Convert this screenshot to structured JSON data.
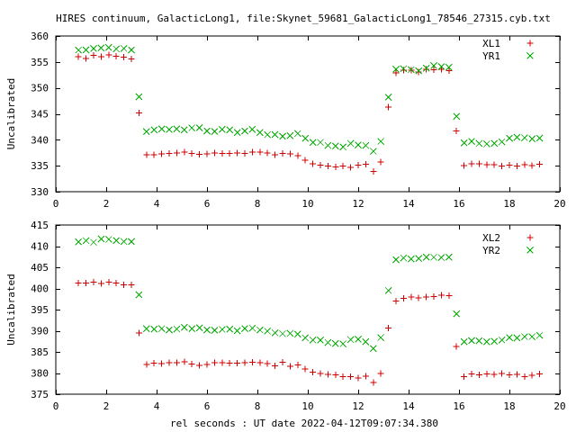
{
  "figure": {
    "title": "HIRES continuum, GalacticLong1, file:Skynet_59681_GalacticLong1_78546_27315.cyb.txt",
    "xlabel": "rel seconds : UT date 2022-04-12T09:07:34.380"
  },
  "chart_data": [
    {
      "type": "scatter",
      "title": "HIRES continuum, GalacticLong1, file:Skynet_59681_GalacticLong1_78546_27315.cyb.txt",
      "xlabel": "",
      "ylabel": "Uncalibrated",
      "xlim": [
        0,
        20
      ],
      "ylim": [
        330,
        360
      ],
      "xticks": [
        0,
        2,
        4,
        6,
        8,
        10,
        12,
        14,
        16,
        18,
        20
      ],
      "yticks": [
        330,
        335,
        340,
        345,
        350,
        355,
        360
      ],
      "grid": false,
      "legend": "top-right",
      "x": [
        0.9,
        1.2,
        1.5,
        1.8,
        2.1,
        2.4,
        2.7,
        3.0,
        3.3,
        3.6,
        3.9,
        4.2,
        4.5,
        4.8,
        5.1,
        5.4,
        5.7,
        6.0,
        6.3,
        6.6,
        6.9,
        7.2,
        7.5,
        7.8,
        8.1,
        8.4,
        8.7,
        9.0,
        9.3,
        9.6,
        9.9,
        10.2,
        10.5,
        10.8,
        11.1,
        11.4,
        11.7,
        12.0,
        12.3,
        12.6,
        12.9,
        13.2,
        13.5,
        13.8,
        14.1,
        14.4,
        14.7,
        15.0,
        15.3,
        15.6,
        15.9,
        16.2,
        16.5,
        16.8,
        17.1,
        17.4,
        17.7,
        18.0,
        18.3,
        18.6,
        18.9,
        19.2
      ],
      "series": [
        {
          "name": "XL1",
          "color": "#cc0000",
          "marker": "plus",
          "values": [
            356.0,
            355.7,
            356.3,
            356.0,
            356.4,
            356.1,
            355.9,
            355.6,
            345.2,
            337.1,
            337.1,
            337.3,
            337.4,
            337.5,
            337.6,
            337.4,
            337.2,
            337.3,
            337.5,
            337.4,
            337.4,
            337.5,
            337.4,
            337.6,
            337.6,
            337.5,
            337.1,
            337.4,
            337.3,
            336.9,
            336.1,
            335.4,
            335.1,
            334.9,
            334.8,
            334.9,
            334.7,
            335.1,
            335.3,
            333.9,
            335.7,
            346.3,
            352.9,
            353.4,
            353.4,
            353.1,
            353.6,
            353.5,
            353.6,
            353.3,
            341.7,
            335.0,
            335.4,
            335.4,
            335.2,
            335.2,
            334.9,
            335.1,
            334.9,
            335.2,
            335.0,
            335.3
          ]
        },
        {
          "name": "YR1",
          "color": "#00aa00",
          "marker": "cross",
          "values": [
            357.3,
            357.3,
            357.6,
            357.7,
            357.8,
            357.5,
            357.6,
            357.3,
            348.3,
            341.6,
            341.9,
            342.1,
            342.0,
            342.1,
            341.9,
            342.3,
            342.3,
            341.7,
            341.6,
            342.0,
            341.9,
            341.4,
            341.7,
            342.0,
            341.4,
            341.0,
            341.0,
            340.7,
            340.8,
            341.2,
            340.3,
            339.5,
            339.5,
            338.9,
            338.8,
            338.6,
            339.3,
            339.0,
            338.9,
            337.8,
            339.7,
            348.2,
            353.6,
            353.7,
            353.5,
            353.3,
            353.8,
            354.3,
            354.1,
            354.0,
            344.5,
            339.4,
            339.7,
            339.3,
            339.2,
            339.3,
            339.6,
            340.3,
            340.5,
            340.4,
            340.2,
            340.3
          ]
        }
      ]
    },
    {
      "type": "scatter",
      "title": "",
      "xlabel": "rel seconds : UT date 2022-04-12T09:07:34.380",
      "ylabel": "Uncalibrated",
      "xlim": [
        0,
        20
      ],
      "ylim": [
        375,
        415
      ],
      "xticks": [
        0,
        2,
        4,
        6,
        8,
        10,
        12,
        14,
        16,
        18,
        20
      ],
      "yticks": [
        375,
        380,
        385,
        390,
        395,
        400,
        405,
        410,
        415
      ],
      "grid": false,
      "legend": "top-right",
      "x": [
        0.9,
        1.2,
        1.5,
        1.8,
        2.1,
        2.4,
        2.7,
        3.0,
        3.3,
        3.6,
        3.9,
        4.2,
        4.5,
        4.8,
        5.1,
        5.4,
        5.7,
        6.0,
        6.3,
        6.6,
        6.9,
        7.2,
        7.5,
        7.8,
        8.1,
        8.4,
        8.7,
        9.0,
        9.3,
        9.6,
        9.9,
        10.2,
        10.5,
        10.8,
        11.1,
        11.4,
        11.7,
        12.0,
        12.3,
        12.6,
        12.9,
        13.2,
        13.5,
        13.8,
        14.1,
        14.4,
        14.7,
        15.0,
        15.3,
        15.6,
        15.9,
        16.2,
        16.5,
        16.8,
        17.1,
        17.4,
        17.7,
        18.0,
        18.3,
        18.6,
        18.9,
        19.2
      ],
      "series": [
        {
          "name": "XL2",
          "color": "#cc0000",
          "marker": "plus",
          "values": [
            401.3,
            401.3,
            401.5,
            401.2,
            401.5,
            401.3,
            400.9,
            400.8,
            389.5,
            382.0,
            382.3,
            382.2,
            382.4,
            382.5,
            382.7,
            382.1,
            381.8,
            382.0,
            382.4,
            382.5,
            382.3,
            382.3,
            382.5,
            382.6,
            382.4,
            382.2,
            381.7,
            382.6,
            381.6,
            381.9,
            381.0,
            380.2,
            379.9,
            379.7,
            379.6,
            379.2,
            379.2,
            378.8,
            379.3,
            377.8,
            379.9,
            390.6,
            397.0,
            397.7,
            398.0,
            397.8,
            398.0,
            398.1,
            398.4,
            398.3,
            386.3,
            379.2,
            379.8,
            379.6,
            379.8,
            379.7,
            379.9,
            379.6,
            379.7,
            379.2,
            379.5,
            379.8
          ]
        },
        {
          "name": "YR2",
          "color": "#00aa00",
          "marker": "cross",
          "values": [
            411.0,
            411.3,
            410.9,
            411.7,
            411.6,
            411.3,
            411.1,
            411.1,
            398.5,
            390.5,
            390.4,
            390.5,
            390.2,
            390.4,
            390.8,
            390.5,
            390.7,
            390.2,
            390.1,
            390.3,
            390.4,
            390.0,
            390.5,
            390.6,
            390.2,
            389.9,
            389.5,
            389.3,
            389.4,
            389.2,
            388.3,
            387.8,
            387.8,
            387.2,
            387.0,
            386.9,
            387.9,
            388.0,
            387.4,
            385.8,
            388.4,
            399.5,
            406.8,
            407.2,
            407.0,
            407.1,
            407.4,
            407.4,
            407.3,
            407.4,
            394.0,
            387.4,
            387.7,
            387.6,
            387.4,
            387.5,
            387.8,
            388.4,
            388.3,
            388.6,
            388.6,
            388.9
          ]
        }
      ]
    }
  ]
}
